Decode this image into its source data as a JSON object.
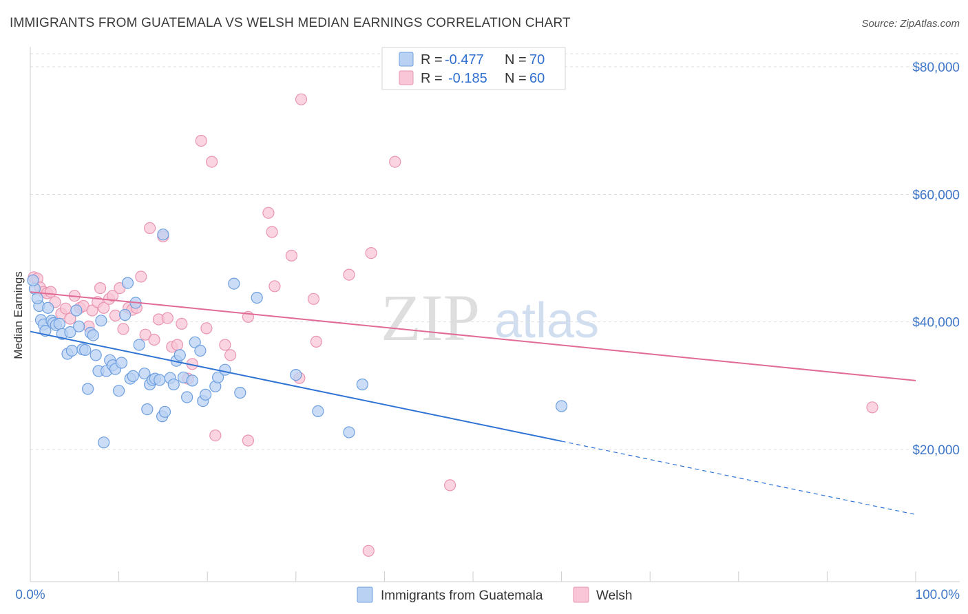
{
  "header": {
    "title": "IMMIGRANTS FROM GUATEMALA VS WELSH MEDIAN EARNINGS CORRELATION CHART",
    "source": "Source: ZipAtlas.com"
  },
  "watermark": {
    "zip": "ZIP",
    "atlas": "atlas"
  },
  "stats": [
    {
      "r_label": "R =",
      "r_value": "-0.477",
      "n_label": "N =",
      "n_value": "70"
    },
    {
      "r_label": "R =",
      "r_value": "-0.185",
      "n_label": "N =",
      "n_value": "60"
    }
  ],
  "legend": {
    "series1": "Immigrants from Guatemala",
    "series2": "Welsh"
  },
  "colors": {
    "blue_fill": "#b9d2f3",
    "blue_stroke": "#6e9fdf",
    "blue_line": "#2f73d4",
    "pink_fill": "#f8c6d6",
    "pink_stroke": "#e995b2",
    "pink_line": "#e06b96",
    "axis_text": "#3f77c8",
    "grid": "#dddddd"
  },
  "chart_data": {
    "type": "scatter",
    "xlabel": "",
    "ylabel": "Median Earnings",
    "xlim": [
      0,
      100
    ],
    "ylim": [
      2000,
      82000
    ],
    "x_tick_labels": [
      "0.0%",
      "100.0%"
    ],
    "y_ticks": [
      20000,
      40000,
      60000,
      80000
    ],
    "y_tick_labels": [
      "$20,000",
      "$40,000",
      "$60,000",
      "$80,000"
    ],
    "grid": "horizontal dashed",
    "legend_position": "bottom-center",
    "series": [
      {
        "name": "Immigrants from Guatemala",
        "trend": {
          "x": [
            0,
            60
          ],
          "y": [
            38500,
            21300
          ],
          "dashed_extension": {
            "x": [
              60,
              100
            ],
            "y": [
              21300,
              9800
            ]
          }
        },
        "points": [
          [
            0.5,
            45200
          ],
          [
            1.0,
            42500
          ],
          [
            1.2,
            40300
          ],
          [
            1.5,
            39600
          ],
          [
            1.7,
            38600
          ],
          [
            2.0,
            42200
          ],
          [
            2.4,
            40200
          ],
          [
            2.6,
            39800
          ],
          [
            2.9,
            39500
          ],
          [
            3.3,
            39700
          ],
          [
            3.6,
            38100
          ],
          [
            4.2,
            35000
          ],
          [
            4.5,
            38400
          ],
          [
            4.7,
            35500
          ],
          [
            5.2,
            41800
          ],
          [
            5.5,
            39300
          ],
          [
            5.9,
            35700
          ],
          [
            6.2,
            35600
          ],
          [
            6.5,
            29500
          ],
          [
            6.8,
            38300
          ],
          [
            7.1,
            37900
          ],
          [
            7.4,
            34800
          ],
          [
            7.7,
            32300
          ],
          [
            8.0,
            40200
          ],
          [
            8.3,
            21100
          ],
          [
            8.6,
            32300
          ],
          [
            9.0,
            34000
          ],
          [
            9.3,
            33200
          ],
          [
            9.6,
            32600
          ],
          [
            10.0,
            29200
          ],
          [
            10.3,
            33600
          ],
          [
            10.7,
            41100
          ],
          [
            11.0,
            46100
          ],
          [
            11.3,
            31100
          ],
          [
            11.6,
            31500
          ],
          [
            11.9,
            43000
          ],
          [
            12.3,
            36400
          ],
          [
            12.9,
            31900
          ],
          [
            13.2,
            26300
          ],
          [
            13.5,
            30200
          ],
          [
            13.8,
            30900
          ],
          [
            14.1,
            31100
          ],
          [
            14.6,
            30900
          ],
          [
            14.9,
            25200
          ],
          [
            15.2,
            25900
          ],
          [
            15.0,
            53700
          ],
          [
            15.8,
            31200
          ],
          [
            16.2,
            30200
          ],
          [
            16.5,
            33900
          ],
          [
            16.9,
            34800
          ],
          [
            17.3,
            31300
          ],
          [
            17.7,
            28200
          ],
          [
            18.3,
            30800
          ],
          [
            18.6,
            36800
          ],
          [
            19.2,
            35500
          ],
          [
            19.5,
            27600
          ],
          [
            19.8,
            28600
          ],
          [
            20.9,
            29900
          ],
          [
            21.2,
            31300
          ],
          [
            22.0,
            32500
          ],
          [
            23.0,
            46000
          ],
          [
            23.7,
            28900
          ],
          [
            25.6,
            43800
          ],
          [
            30.0,
            31700
          ],
          [
            32.5,
            26000
          ],
          [
            36.0,
            22700
          ],
          [
            37.5,
            30200
          ],
          [
            60.0,
            26800
          ],
          [
            0.3,
            46500
          ],
          [
            0.8,
            43700
          ]
        ]
      },
      {
        "name": "Welsh",
        "trend": {
          "x": [
            0,
            100
          ],
          "y": [
            44700,
            30800
          ]
        },
        "points": [
          [
            0.4,
            47000
          ],
          [
            0.8,
            46800
          ],
          [
            1.1,
            45400
          ],
          [
            1.5,
            44700
          ],
          [
            1.9,
            44500
          ],
          [
            2.3,
            44700
          ],
          [
            2.8,
            43100
          ],
          [
            3.5,
            41300
          ],
          [
            4.0,
            42100
          ],
          [
            4.5,
            40500
          ],
          [
            5.0,
            44100
          ],
          [
            5.6,
            42200
          ],
          [
            6.0,
            42500
          ],
          [
            6.6,
            39300
          ],
          [
            7.0,
            41800
          ],
          [
            7.6,
            43100
          ],
          [
            7.9,
            45300
          ],
          [
            8.3,
            42200
          ],
          [
            8.9,
            43600
          ],
          [
            9.3,
            44100
          ],
          [
            9.6,
            41000
          ],
          [
            10.1,
            45300
          ],
          [
            10.5,
            38900
          ],
          [
            11.1,
            42200
          ],
          [
            11.5,
            41900
          ],
          [
            12.0,
            42200
          ],
          [
            12.5,
            47100
          ],
          [
            13.0,
            38000
          ],
          [
            13.5,
            54700
          ],
          [
            14.0,
            37200
          ],
          [
            14.5,
            40400
          ],
          [
            15.0,
            53400
          ],
          [
            15.5,
            40600
          ],
          [
            16.0,
            36100
          ],
          [
            16.6,
            36400
          ],
          [
            17.1,
            39700
          ],
          [
            17.8,
            31100
          ],
          [
            18.3,
            33400
          ],
          [
            19.3,
            68400
          ],
          [
            19.9,
            39000
          ],
          [
            20.5,
            65100
          ],
          [
            20.9,
            22200
          ],
          [
            22.0,
            36400
          ],
          [
            22.6,
            34800
          ],
          [
            24.6,
            21400
          ],
          [
            24.6,
            40800
          ],
          [
            26.9,
            57100
          ],
          [
            27.3,
            54100
          ],
          [
            27.6,
            45600
          ],
          [
            29.5,
            50400
          ],
          [
            30.4,
            31200
          ],
          [
            30.6,
            74900
          ],
          [
            32.0,
            43600
          ],
          [
            32.3,
            36900
          ],
          [
            36.0,
            47400
          ],
          [
            38.5,
            50800
          ],
          [
            38.2,
            4100
          ],
          [
            41.2,
            65100
          ],
          [
            47.4,
            14400
          ],
          [
            95.1,
            26600
          ]
        ]
      }
    ]
  }
}
